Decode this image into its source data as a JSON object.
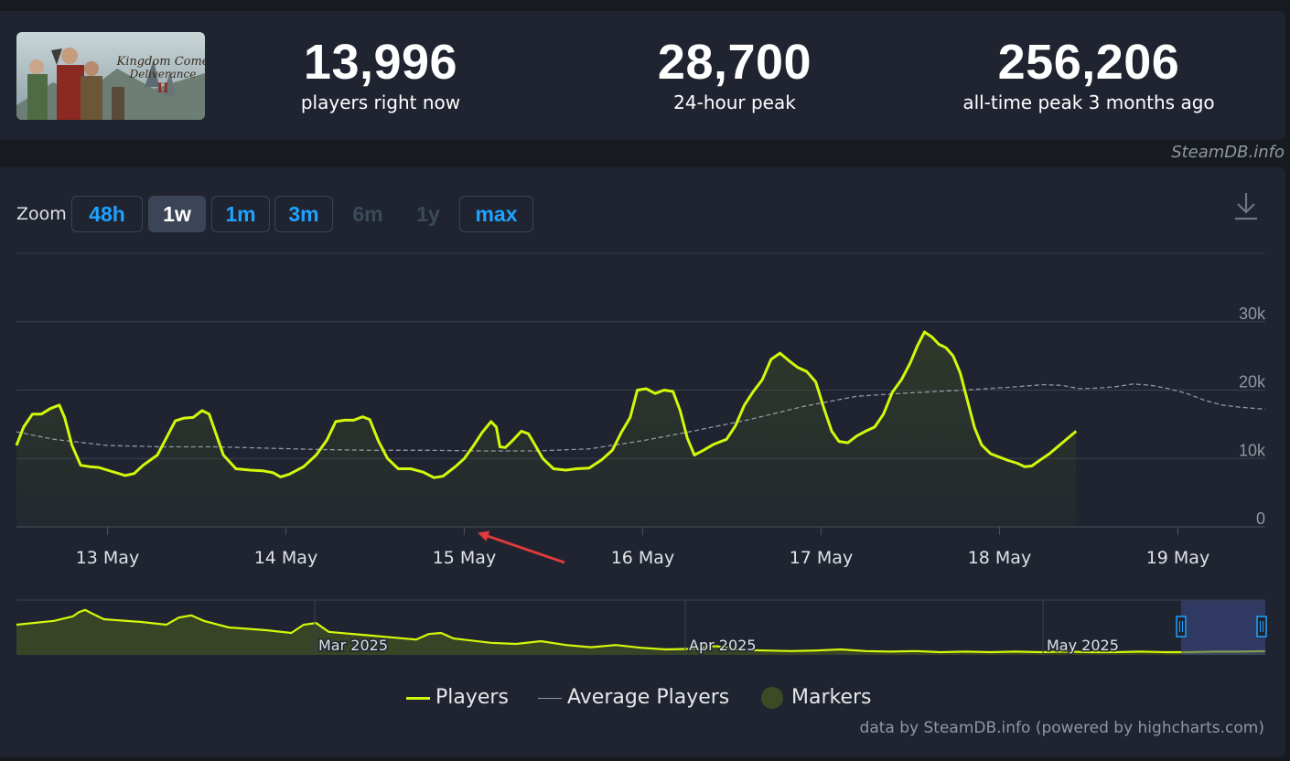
{
  "stats": {
    "current": {
      "value": "13,996",
      "label": "players right now"
    },
    "peak24": {
      "value": "28,700",
      "label": "24-hour peak"
    },
    "alltime": {
      "value": "256,206",
      "label": "all-time peak 3 months ago"
    }
  },
  "game_logo": {
    "line1": "Kingdom Come",
    "line2": "Deliverance",
    "numeral": "II"
  },
  "credit_top": "SteamDB.info",
  "zoom": {
    "label": "Zoom",
    "buttons": [
      {
        "label": "48h",
        "state": "enabled"
      },
      {
        "label": "1w",
        "state": "active"
      },
      {
        "label": "1m",
        "state": "enabled"
      },
      {
        "label": "3m",
        "state": "enabled"
      },
      {
        "label": "6m",
        "state": "disabled"
      },
      {
        "label": "1y",
        "state": "disabled"
      },
      {
        "label": "max",
        "state": "enabled"
      }
    ]
  },
  "icons": {
    "download": "download-icon"
  },
  "colors": {
    "players": "#d4f80a",
    "average": "#8f98a0",
    "markers": "#3c4a25",
    "accent": "#1fa2ff"
  },
  "legend": {
    "players": "Players",
    "average": "Average Players",
    "markers": "Markers"
  },
  "credit_bottom": "data by SteamDB.info (powered by highcharts.com)",
  "chart_data": {
    "type": "line",
    "ylim": [
      0,
      40000
    ],
    "y_ticks": [
      {
        "value": 0,
        "label": "0"
      },
      {
        "value": 10000,
        "label": "10k"
      },
      {
        "value": 20000,
        "label": "20k"
      },
      {
        "value": 30000,
        "label": "30k"
      }
    ],
    "x_range": [
      12.49,
      19.49
    ],
    "x_ticks": [
      {
        "value": 13,
        "label": "13 May"
      },
      {
        "value": 14,
        "label": "14 May"
      },
      {
        "value": 15,
        "label": "15 May"
      },
      {
        "value": 16,
        "label": "16 May"
      },
      {
        "value": 17,
        "label": "17 May"
      },
      {
        "value": 18,
        "label": "18 May"
      },
      {
        "value": 19,
        "label": "19 May"
      }
    ],
    "series": [
      {
        "name": "Players",
        "points": [
          [
            12.49,
            11900
          ],
          [
            12.53,
            14600
          ],
          [
            12.58,
            16500
          ],
          [
            12.63,
            16500
          ],
          [
            12.68,
            17300
          ],
          [
            12.73,
            17800
          ],
          [
            12.76,
            16000
          ],
          [
            12.8,
            12000
          ],
          [
            12.85,
            9000
          ],
          [
            12.9,
            8800
          ],
          [
            12.95,
            8700
          ],
          [
            13.0,
            8300
          ],
          [
            13.05,
            7900
          ],
          [
            13.1,
            7500
          ],
          [
            13.15,
            7800
          ],
          [
            13.2,
            9000
          ],
          [
            13.28,
            10500
          ],
          [
            13.33,
            13000
          ],
          [
            13.38,
            15500
          ],
          [
            13.43,
            15900
          ],
          [
            13.48,
            16000
          ],
          [
            13.53,
            17000
          ],
          [
            13.57,
            16500
          ],
          [
            13.61,
            13500
          ],
          [
            13.65,
            10500
          ],
          [
            13.72,
            8500
          ],
          [
            13.8,
            8300
          ],
          [
            13.87,
            8200
          ],
          [
            13.93,
            7900
          ],
          [
            13.97,
            7300
          ],
          [
            14.02,
            7700
          ],
          [
            14.1,
            8800
          ],
          [
            14.17,
            10500
          ],
          [
            14.23,
            12700
          ],
          [
            14.28,
            15400
          ],
          [
            14.33,
            15600
          ],
          [
            14.38,
            15600
          ],
          [
            14.43,
            16100
          ],
          [
            14.47,
            15700
          ],
          [
            14.52,
            12500
          ],
          [
            14.57,
            10000
          ],
          [
            14.63,
            8500
          ],
          [
            14.7,
            8500
          ],
          [
            14.77,
            8000
          ],
          [
            14.83,
            7200
          ],
          [
            14.88,
            7400
          ],
          [
            14.95,
            8800
          ],
          [
            15.0,
            10000
          ],
          [
            15.05,
            11800
          ],
          [
            15.1,
            13800
          ],
          [
            15.15,
            15400
          ],
          [
            15.18,
            14600
          ],
          [
            15.2,
            11700
          ],
          [
            15.23,
            11600
          ],
          [
            15.27,
            12600
          ],
          [
            15.32,
            14000
          ],
          [
            15.36,
            13600
          ],
          [
            15.4,
            11800
          ],
          [
            15.44,
            10000
          ],
          [
            15.5,
            8500
          ],
          [
            15.57,
            8300
          ],
          [
            15.63,
            8500
          ],
          [
            15.7,
            8600
          ],
          [
            15.77,
            9800
          ],
          [
            15.83,
            11200
          ],
          [
            15.88,
            13800
          ],
          [
            15.93,
            16000
          ],
          [
            15.97,
            20000
          ],
          [
            16.02,
            20200
          ],
          [
            16.07,
            19500
          ],
          [
            16.12,
            20000
          ],
          [
            16.17,
            19800
          ],
          [
            16.21,
            17000
          ],
          [
            16.25,
            13000
          ],
          [
            16.29,
            10500
          ],
          [
            16.34,
            11200
          ],
          [
            16.4,
            12100
          ],
          [
            16.47,
            12800
          ],
          [
            16.52,
            14800
          ],
          [
            16.57,
            17800
          ],
          [
            16.62,
            19800
          ],
          [
            16.67,
            21500
          ],
          [
            16.72,
            24500
          ],
          [
            16.77,
            25400
          ],
          [
            16.82,
            24300
          ],
          [
            16.87,
            23300
          ],
          [
            16.92,
            22700
          ],
          [
            16.97,
            21200
          ],
          [
            17.02,
            17000
          ],
          [
            17.06,
            14000
          ],
          [
            17.1,
            12500
          ],
          [
            17.15,
            12300
          ],
          [
            17.2,
            13300
          ],
          [
            17.25,
            14000
          ],
          [
            17.3,
            14600
          ],
          [
            17.35,
            16500
          ],
          [
            17.4,
            19700
          ],
          [
            17.45,
            21500
          ],
          [
            17.5,
            24000
          ],
          [
            17.54,
            26500
          ],
          [
            17.58,
            28500
          ],
          [
            17.62,
            27800
          ],
          [
            17.66,
            26700
          ],
          [
            17.7,
            26200
          ],
          [
            17.74,
            25000
          ],
          [
            17.78,
            22500
          ],
          [
            17.82,
            18500
          ],
          [
            17.86,
            14500
          ],
          [
            17.9,
            12000
          ],
          [
            17.95,
            10700
          ],
          [
            18.0,
            10200
          ],
          [
            18.05,
            9700
          ],
          [
            18.1,
            9300
          ],
          [
            18.14,
            8800
          ],
          [
            18.18,
            8900
          ],
          [
            18.23,
            9800
          ],
          [
            18.28,
            10700
          ],
          [
            18.33,
            11800
          ],
          [
            18.38,
            12900
          ],
          [
            18.43,
            14000
          ]
        ]
      },
      {
        "name": "Average Players",
        "points": [
          [
            12.49,
            13900
          ],
          [
            12.7,
            12800
          ],
          [
            13.0,
            11900
          ],
          [
            13.3,
            11700
          ],
          [
            13.6,
            11700
          ],
          [
            13.9,
            11500
          ],
          [
            14.2,
            11300
          ],
          [
            14.5,
            11200
          ],
          [
            14.8,
            11200
          ],
          [
            15.1,
            11100
          ],
          [
            15.4,
            11100
          ],
          [
            15.7,
            11400
          ],
          [
            16.0,
            12600
          ],
          [
            16.3,
            14100
          ],
          [
            16.6,
            15700
          ],
          [
            16.9,
            17600
          ],
          [
            17.2,
            19100
          ],
          [
            17.5,
            19600
          ],
          [
            17.8,
            20000
          ],
          [
            18.05,
            20400
          ],
          [
            18.25,
            20800
          ],
          [
            18.35,
            20700
          ],
          [
            18.45,
            20200
          ],
          [
            18.55,
            20300
          ],
          [
            18.65,
            20500
          ],
          [
            18.75,
            20900
          ],
          [
            18.85,
            20700
          ],
          [
            18.95,
            20200
          ],
          [
            19.05,
            19500
          ],
          [
            19.15,
            18500
          ],
          [
            19.25,
            17800
          ],
          [
            19.35,
            17500
          ],
          [
            19.49,
            17200
          ]
        ]
      }
    ],
    "navigator": {
      "x_labels": [
        "Mar 2025",
        "Apr 2025",
        "May 2025"
      ]
    }
  }
}
